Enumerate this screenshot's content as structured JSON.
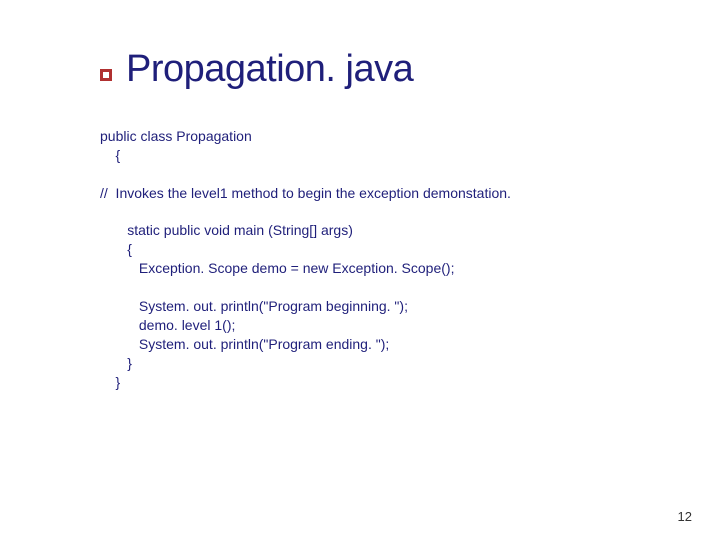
{
  "title": {
    "text": "Propagation. java",
    "color": "#1f1f7a",
    "fontsize": 38
  },
  "bullet": {
    "border_color": "#b03030",
    "background": "#ffffff"
  },
  "code": {
    "color": "#1f1f7a",
    "fontsize": 14,
    "lines": {
      "l1": "public class Propagation",
      "l2": "    {",
      "l3": "//  Invokes the level1 method to begin the exception demonstation.",
      "l4": "       static public void main (String[] args)",
      "l5": "       {",
      "l6": "          Exception. Scope demo = new Exception. Scope();",
      "l7": "          System. out. println(\"Program beginning. \");",
      "l8": "          demo. level 1();",
      "l9": "          System. out. println(\"Program ending. \");",
      "l10": "       }",
      "l11": "    }"
    }
  },
  "page_number": {
    "text": "12",
    "color": "#333333",
    "fontsize": 13
  },
  "background_color": "#ffffff"
}
